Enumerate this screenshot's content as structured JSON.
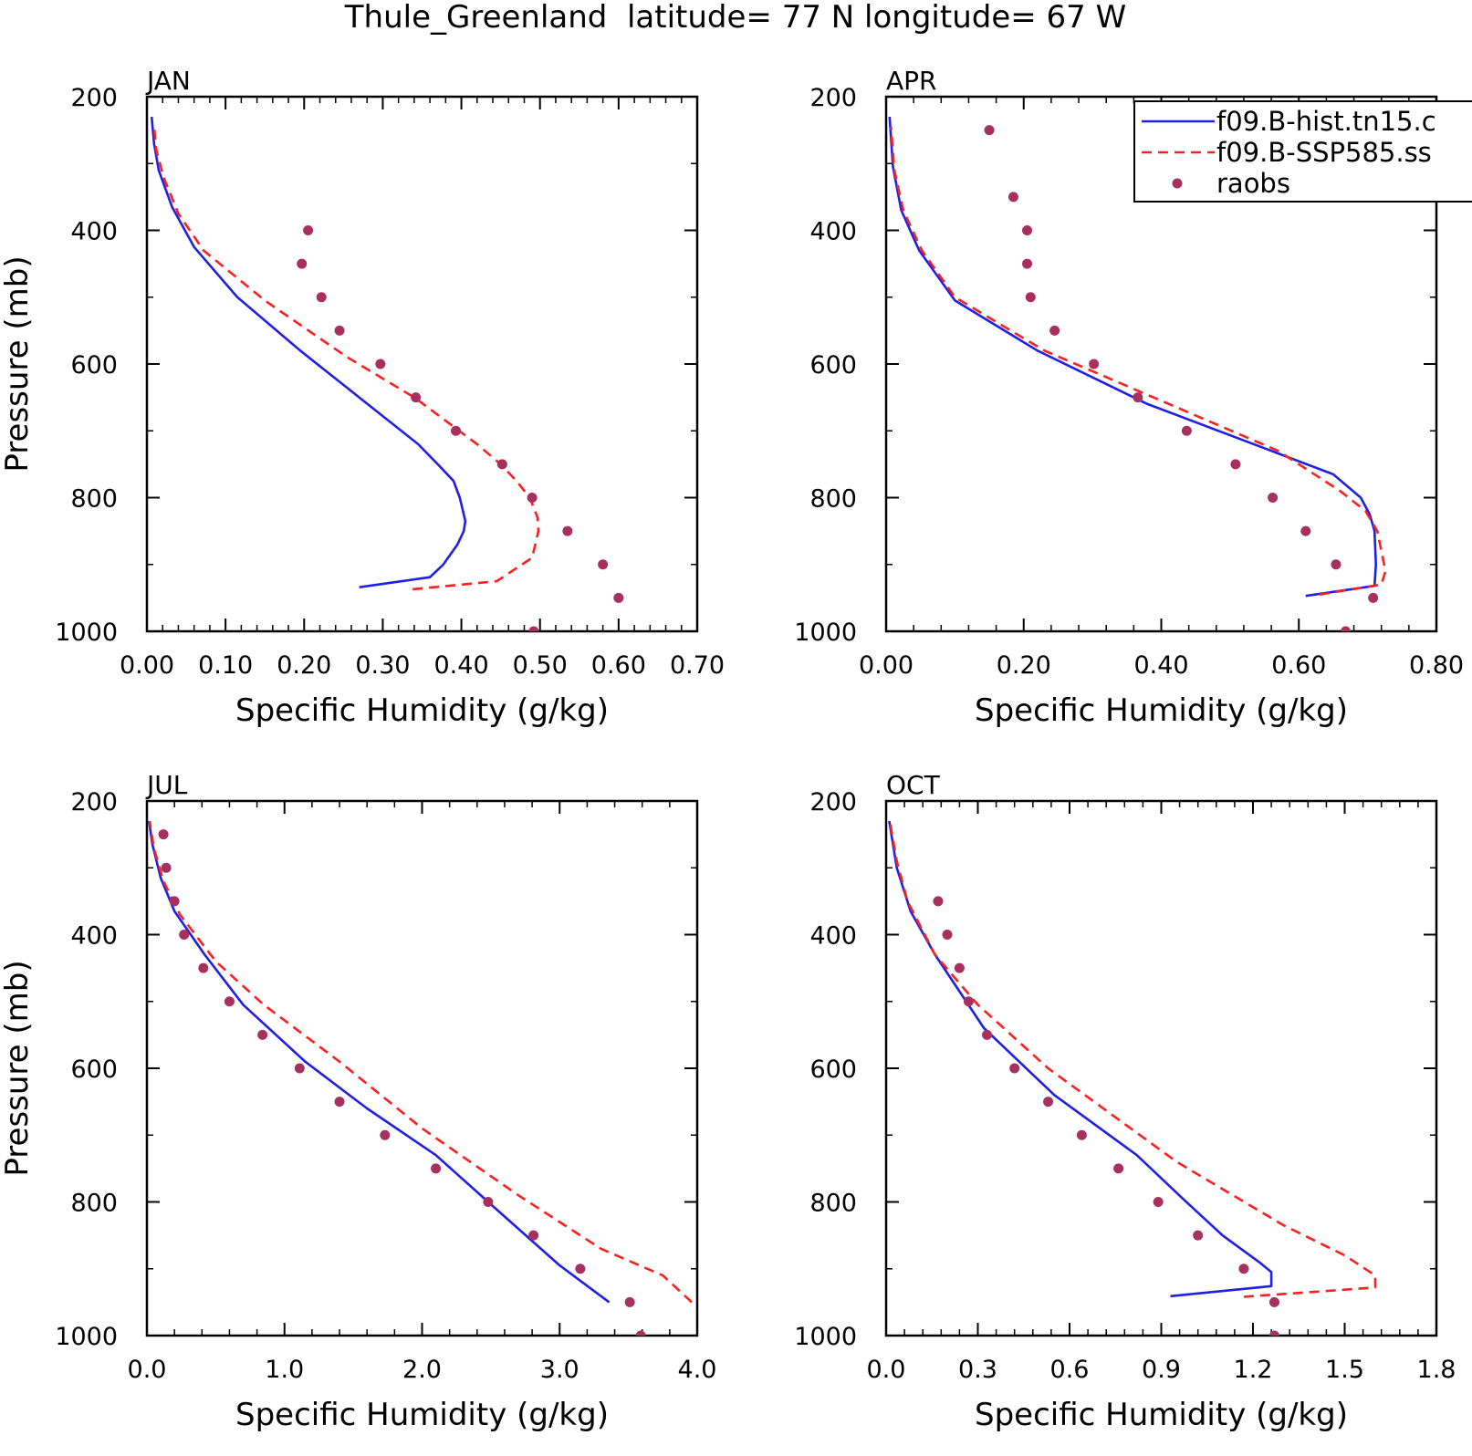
{
  "figure": {
    "title": "Thule_Greenland  latitude= 77 N longitude= 67 W"
  },
  "legend": {
    "entries": [
      {
        "label": "f09.B-hist.tn15.c",
        "color": "#1f1fe6",
        "style": "solid"
      },
      {
        "label": "f09.B-SSP585.ss",
        "color": "#ff1f1f",
        "style": "dashed"
      },
      {
        "label": "raobs",
        "color": "#a8305e",
        "style": "dot"
      }
    ]
  },
  "colors": {
    "hist": "#1f1fe6",
    "ssp585": "#ff1f1f",
    "raobs": "#a8305e",
    "axis": "#000000"
  },
  "chart_data": [
    {
      "type": "line",
      "panel_label": "JAN",
      "xlabel": "Specific Humidity (g/kg)",
      "ylabel": "Pressure (mb)",
      "xlim": [
        0,
        0.7
      ],
      "xticks": [
        0,
        0.1,
        0.2,
        0.3,
        0.4,
        0.5,
        0.6,
        0.7
      ],
      "xtick_labels": [
        "0.00",
        "0.10",
        "0.20",
        "0.30",
        "0.40",
        "0.50",
        "0.60",
        "0.70"
      ],
      "ylim": [
        200,
        1000
      ],
      "yticks": [
        200,
        400,
        600,
        800,
        1000
      ],
      "ytick_labels": [
        "200",
        "400",
        "600",
        "800",
        "1000"
      ],
      "series": [
        {
          "name": "f09.B-hist.tn15.c",
          "style": "solid",
          "x": [
            0.27,
            0.36,
            0.377,
            0.395,
            0.403,
            0.405,
            0.398,
            0.39,
            0.37,
            0.345,
            0.27,
            0.195,
            0.115,
            0.06,
            0.032,
            0.015,
            0.009,
            0.006
          ],
          "y": [
            934,
            919,
            900,
            870,
            850,
            835,
            800,
            775,
            750,
            720,
            650,
            580,
            500,
            425,
            365,
            310,
            270,
            230
          ]
        },
        {
          "name": "f09.B-SSP585.ss",
          "style": "dashed",
          "x": [
            0.338,
            0.445,
            0.49,
            0.498,
            0.497,
            0.487,
            0.47,
            0.45,
            0.42,
            0.34,
            0.255,
            0.15,
            0.072,
            0.04,
            0.021,
            0.012,
            0.009
          ],
          "y": [
            937,
            925,
            890,
            850,
            830,
            800,
            775,
            750,
            720,
            650,
            590,
            505,
            430,
            375,
            320,
            280,
            245
          ]
        },
        {
          "name": "raobs",
          "style": "dots",
          "x": [
            0.205,
            0.197,
            0.222,
            0.245,
            0.297,
            0.342,
            0.393,
            0.452,
            0.49,
            0.535,
            0.58,
            0.6,
            0.492
          ],
          "y": [
            400,
            450,
            500,
            550,
            600,
            650,
            700,
            750,
            800,
            850,
            900,
            950,
            1000
          ]
        }
      ]
    },
    {
      "type": "line",
      "panel_label": "APR",
      "xlabel": "Specific Humidity (g/kg)",
      "ylabel": "",
      "xlim": [
        0,
        0.8
      ],
      "xticks": [
        0,
        0.2,
        0.4,
        0.6,
        0.8
      ],
      "xtick_labels": [
        "0.00",
        "0.20",
        "0.40",
        "0.60",
        "0.80"
      ],
      "ylim": [
        200,
        1000
      ],
      "yticks": [
        200,
        400,
        600,
        800,
        1000
      ],
      "ytick_labels": [
        "200",
        "400",
        "600",
        "800",
        "1000"
      ],
      "series": [
        {
          "name": "f09.B-hist.tn15.c",
          "style": "solid",
          "x": [
            0.61,
            0.71,
            0.712,
            0.71,
            0.703,
            0.69,
            0.65,
            0.56,
            0.38,
            0.22,
            0.1,
            0.048,
            0.022,
            0.01,
            0.005
          ],
          "y": [
            947,
            932,
            900,
            850,
            825,
            800,
            765,
            730,
            660,
            580,
            505,
            430,
            370,
            305,
            230
          ]
        },
        {
          "name": "f09.B-SSP585.ss",
          "style": "dashed",
          "x": [
            0.63,
            0.72,
            0.726,
            0.714,
            0.697,
            0.66,
            0.57,
            0.4,
            0.23,
            0.1,
            0.052,
            0.025,
            0.012,
            0.007
          ],
          "y": [
            945,
            930,
            910,
            850,
            820,
            790,
            730,
            655,
            580,
            500,
            430,
            370,
            310,
            245
          ]
        },
        {
          "name": "raobs",
          "style": "dots",
          "x": [
            0.15,
            0.185,
            0.205,
            0.205,
            0.21,
            0.245,
            0.302,
            0.366,
            0.437,
            0.508,
            0.562,
            0.61,
            0.654,
            0.708,
            0.668
          ],
          "y": [
            250,
            350,
            400,
            450,
            500,
            550,
            600,
            650,
            700,
            750,
            800,
            850,
            900,
            950,
            1000
          ]
        }
      ]
    },
    {
      "type": "line",
      "panel_label": "JUL",
      "xlabel": "Specific Humidity (g/kg)",
      "ylabel": "Pressure (mb)",
      "xlim": [
        0,
        4
      ],
      "xticks": [
        0,
        1,
        2,
        3,
        4
      ],
      "xtick_labels": [
        "0.0",
        "1.0",
        "2.0",
        "3.0",
        "4.0"
      ],
      "ylim": [
        200,
        1000
      ],
      "yticks": [
        200,
        400,
        600,
        800,
        1000
      ],
      "ytick_labels": [
        "200",
        "400",
        "600",
        "800",
        "1000"
      ],
      "series": [
        {
          "name": "f09.B-hist.tn15.c",
          "style": "solid",
          "x": [
            3.36,
            3.0,
            2.48,
            2.1,
            1.6,
            1.15,
            0.7,
            0.42,
            0.2,
            0.1,
            0.04,
            0.015
          ],
          "y": [
            950,
            895,
            800,
            730,
            660,
            590,
            505,
            430,
            365,
            315,
            265,
            230
          ]
        },
        {
          "name": "f09.B-SSP585.ss",
          "style": "dashed",
          "x": [
            3.96,
            3.75,
            3.3,
            2.7,
            2.0,
            1.4,
            0.85,
            0.5,
            0.24,
            0.12,
            0.05,
            0.02
          ],
          "y": [
            950,
            910,
            870,
            790,
            690,
            590,
            505,
            440,
            370,
            320,
            270,
            230
          ]
        },
        {
          "name": "raobs",
          "style": "dots",
          "x": [
            0.12,
            0.14,
            0.2,
            0.27,
            0.41,
            0.6,
            0.84,
            1.11,
            1.4,
            1.73,
            2.1,
            2.48,
            2.81,
            3.15,
            3.51,
            3.59
          ],
          "y": [
            250,
            300,
            350,
            400,
            450,
            500,
            550,
            600,
            650,
            700,
            750,
            800,
            850,
            900,
            950,
            1000
          ]
        }
      ]
    },
    {
      "type": "line",
      "panel_label": "OCT",
      "xlabel": "Specific Humidity (g/kg)",
      "ylabel": "",
      "xlim": [
        0,
        1.8
      ],
      "xticks": [
        0,
        0.3,
        0.6,
        0.9,
        1.2,
        1.5,
        1.8
      ],
      "xtick_labels": [
        "0.0",
        "0.3",
        "0.6",
        "0.9",
        "1.2",
        "1.5",
        "1.8"
      ],
      "ylim": [
        200,
        1000
      ],
      "yticks": [
        200,
        400,
        600,
        800,
        1000
      ],
      "ytick_labels": [
        "200",
        "400",
        "600",
        "800",
        "1000"
      ],
      "series": [
        {
          "name": "f09.B-hist.tn15.c",
          "style": "solid",
          "x": [
            0.93,
            1.26,
            1.26,
            1.22,
            1.1,
            0.97,
            0.82,
            0.55,
            0.32,
            0.16,
            0.08,
            0.035,
            0.01
          ],
          "y": [
            941,
            926,
            905,
            890,
            850,
            795,
            730,
            640,
            540,
            430,
            365,
            300,
            230
          ]
        },
        {
          "name": "f09.B-SSP585.ss",
          "style": "dashed",
          "x": [
            1.17,
            1.6,
            1.6,
            1.5,
            1.3,
            0.95,
            0.53,
            0.3,
            0.16,
            0.07,
            0.035,
            0.012
          ],
          "y": [
            942,
            928,
            910,
            880,
            835,
            740,
            600,
            505,
            430,
            350,
            290,
            230
          ]
        },
        {
          "name": "raobs",
          "style": "dots",
          "x": [
            0.17,
            0.2,
            0.24,
            0.27,
            0.33,
            0.42,
            0.53,
            0.64,
            0.76,
            0.89,
            1.02,
            1.17,
            1.27,
            1.27
          ],
          "y": [
            350,
            400,
            450,
            500,
            550,
            600,
            650,
            700,
            750,
            800,
            850,
            900,
            950,
            1000
          ]
        }
      ]
    }
  ]
}
